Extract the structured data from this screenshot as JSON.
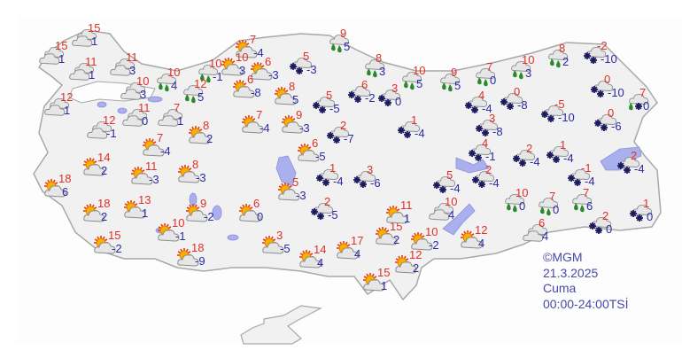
{
  "credit": {
    "source": "©MGM",
    "date": "21.3.2025",
    "day": "Cuma",
    "period": "00:00-24:00TSİ"
  },
  "colors": {
    "max_temp": "#e0302a",
    "min_temp": "#2a2aa8",
    "land": "#f1f1f1",
    "border": "#a8a8a8",
    "lake": "#aab0ee",
    "rain": "#2a8a2a",
    "snow": "#1a1a60",
    "sun": "#f5a000"
  },
  "legend_icons": {
    "C": "cloudy-icon",
    "P": "partly-cloudy-icon",
    "R": "rain-icon",
    "S": "snow-icon"
  },
  "stations": [
    {
      "type": "C",
      "max": "15",
      "min": "1"
    },
    {
      "type": "C",
      "max": "15",
      "min": "1"
    },
    {
      "type": "C",
      "max": "11",
      "min": "3"
    },
    {
      "type": "C",
      "max": "11",
      "min": "1"
    },
    {
      "type": "R",
      "max": "10",
      "min": "4"
    },
    {
      "type": "R",
      "max": "10",
      "min": "-1"
    },
    {
      "type": "C",
      "max": "10",
      "min": "3"
    },
    {
      "type": "R",
      "max": "12",
      "min": "5"
    },
    {
      "type": "C",
      "max": "12",
      "min": "1"
    },
    {
      "type": "C",
      "max": "11",
      "min": "0"
    },
    {
      "type": "C",
      "max": "7",
      "min": "1"
    },
    {
      "type": "C",
      "max": "12",
      "min": "-1"
    },
    {
      "type": "P",
      "max": "7",
      "min": "-4"
    },
    {
      "type": "P",
      "max": "10",
      "min": "3"
    },
    {
      "type": "P",
      "max": "6",
      "min": "-3"
    },
    {
      "type": "P",
      "max": "6",
      "min": "-8"
    },
    {
      "type": "P",
      "max": "8",
      "min": "5"
    },
    {
      "type": "P",
      "max": "7",
      "min": "-4"
    },
    {
      "type": "P",
      "max": "9",
      "min": "-3"
    },
    {
      "type": "S",
      "max": "5",
      "min": "-3"
    },
    {
      "type": "R",
      "max": "9",
      "min": "5"
    },
    {
      "type": "R",
      "max": "8",
      "min": "3"
    },
    {
      "type": "R",
      "max": "10",
      "min": "5"
    },
    {
      "type": "R",
      "max": "9",
      "min": "5"
    },
    {
      "type": "S",
      "max": "6",
      "min": "-2"
    },
    {
      "type": "S",
      "max": "5",
      "min": "-5"
    },
    {
      "type": "S",
      "max": "3",
      "min": "0"
    },
    {
      "type": "S",
      "max": "2",
      "min": "-7"
    },
    {
      "type": "S",
      "max": "1",
      "min": "-4"
    },
    {
      "type": "R",
      "max": "7",
      "min": "0"
    },
    {
      "type": "R",
      "max": "10",
      "min": "3"
    },
    {
      "type": "R",
      "max": "8",
      "min": "2"
    },
    {
      "type": "S",
      "max": "-2",
      "min": "-10"
    },
    {
      "type": "S",
      "max": "4",
      "min": "-4"
    },
    {
      "type": "S",
      "max": "0",
      "min": "-8"
    },
    {
      "type": "S",
      "max": "-5",
      "min": "-10"
    },
    {
      "type": "S",
      "max": "0",
      "min": "-10"
    },
    {
      "type": "RS",
      "max": "7",
      "min": "0"
    },
    {
      "type": "S",
      "max": "3",
      "min": "-8"
    },
    {
      "type": "S",
      "max": "0",
      "min": "-6"
    },
    {
      "type": "P",
      "max": "14",
      "min": "2"
    },
    {
      "type": "P",
      "max": "7",
      "min": "-4"
    },
    {
      "type": "P",
      "max": "18",
      "min": "6"
    },
    {
      "type": "P",
      "max": "11",
      "min": "-3"
    },
    {
      "type": "P",
      "max": "8",
      "min": "-3"
    },
    {
      "type": "P",
      "max": "8",
      "min": "2"
    },
    {
      "type": "P",
      "max": "18",
      "min": "2"
    },
    {
      "type": "P",
      "max": "13",
      "min": "1"
    },
    {
      "type": "P",
      "max": "9",
      "min": "-2"
    },
    {
      "type": "P",
      "max": "6",
      "min": "0"
    },
    {
      "type": "P",
      "max": "10",
      "min": "-1"
    },
    {
      "type": "P",
      "max": "15",
      "min": "-2"
    },
    {
      "type": "P",
      "max": "18",
      "min": "-9"
    },
    {
      "type": "P",
      "max": "6",
      "min": "-5"
    },
    {
      "type": "P",
      "max": "5",
      "min": "-3"
    },
    {
      "type": "S",
      "max": "1",
      "min": "-4"
    },
    {
      "type": "S",
      "max": "3",
      "min": "-6"
    },
    {
      "type": "S",
      "max": "2",
      "min": "-5"
    },
    {
      "type": "P",
      "max": "3",
      "min": "-5"
    },
    {
      "type": "P",
      "max": "14",
      "min": "4"
    },
    {
      "type": "P",
      "max": "17",
      "min": "4"
    },
    {
      "type": "P",
      "max": "15",
      "min": "2"
    },
    {
      "type": "P",
      "max": "11",
      "min": "1"
    },
    {
      "type": "P",
      "max": "10",
      "min": "-2"
    },
    {
      "type": "P",
      "max": "12",
      "min": "2"
    },
    {
      "type": "P",
      "max": "15",
      "min": "1"
    },
    {
      "type": "C",
      "max": "10",
      "min": "4"
    },
    {
      "type": "S",
      "max": "5",
      "min": "-4"
    },
    {
      "type": "S",
      "max": "4",
      "min": "-1"
    },
    {
      "type": "S",
      "max": "2",
      "min": "-4"
    },
    {
      "type": "S",
      "max": "2",
      "min": "-4"
    },
    {
      "type": "S",
      "max": "1",
      "min": "-4"
    },
    {
      "type": "S",
      "max": "-1",
      "min": "-4"
    },
    {
      "type": "S",
      "max": "2",
      "min": "-4"
    },
    {
      "type": "R",
      "max": "10",
      "min": "0"
    },
    {
      "type": "R",
      "max": "7",
      "min": "0"
    },
    {
      "type": "R",
      "max": "7",
      "min": "6"
    },
    {
      "type": "S",
      "max": "2",
      "min": "0"
    },
    {
      "type": "S",
      "max": "1",
      "min": "0"
    },
    {
      "type": "C",
      "max": "6",
      "min": "4"
    },
    {
      "type": "P",
      "max": "12",
      "min": "4"
    }
  ]
}
